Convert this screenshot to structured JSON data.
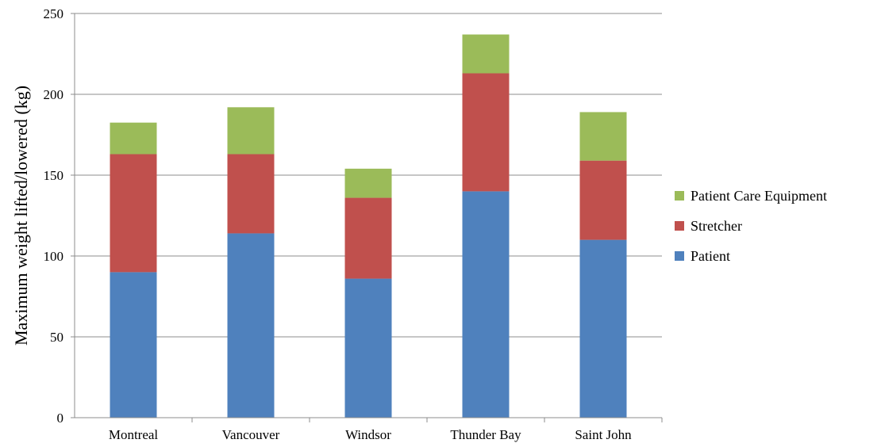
{
  "chart_data": {
    "type": "bar",
    "stacked": true,
    "title": "",
    "xlabel": "",
    "ylabel": "Maximum weight lifted/lowered (kg)",
    "ylim": [
      0,
      250
    ],
    "yticks": [
      0,
      50,
      100,
      150,
      200,
      250
    ],
    "grid": true,
    "legend_position": "right",
    "categories": [
      "Montreal",
      "Vancouver",
      "Windsor",
      "Thunder Bay",
      "Saint John"
    ],
    "series": [
      {
        "name": "Patient",
        "color": "#4f81bd",
        "values": [
          90,
          114,
          86,
          140,
          110
        ]
      },
      {
        "name": "Stretcher",
        "color": "#c0504d",
        "values": [
          73,
          49,
          50,
          73,
          49
        ]
      },
      {
        "name": "Patient Care Equipment",
        "color": "#9bbb59",
        "values": [
          19.5,
          29,
          18,
          24,
          30
        ]
      }
    ],
    "legend_order": [
      "Patient Care Equipment",
      "Stretcher",
      "Patient"
    ]
  }
}
